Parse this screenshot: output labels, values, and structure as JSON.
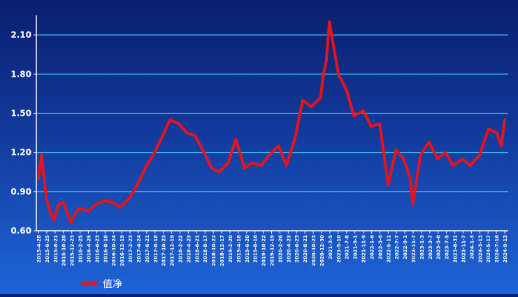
{
  "chart_data": {
    "type": "line",
    "title": "",
    "xlabel": "",
    "ylabel": "",
    "ylim": [
      0.6,
      2.25
    ],
    "yticks": [
      0.6,
      0.9,
      1.2,
      1.5,
      1.8,
      2.1
    ],
    "ytick_labels": [
      "0.60",
      "0.90",
      "1.20",
      "1.50",
      "1.80",
      "2.10"
    ],
    "grid": true,
    "legend_position": "bottom-left",
    "colors": {
      "line": "#e8141b",
      "grid": "#3ec8f2",
      "axis": "#ffffff"
    },
    "x_tick_labels": [
      "2015-4-28",
      "2015-6-25",
      "2015-8-21",
      "2015-10-28",
      "2015-12-23",
      "2016-2-25",
      "2016-4-25",
      "2016-6-23",
      "2016-8-18",
      "2016-10-24",
      "2016-12-19",
      "2017-2-23",
      "2017-4-24",
      "2017-6-21",
      "2017-8-18",
      "2017-10-23",
      "2017-12-19",
      "2018-2-22",
      "2018-4-23",
      "2018-6-21",
      "2018-8-17",
      "2018-10-22",
      "2018-12-17",
      "2019-2-20",
      "2019-4-18",
      "2019-6-20",
      "2019-8-16",
      "2019-10-22",
      "2019-12-19",
      "2020-2-26",
      "2020-4-23",
      "2020-6-23",
      "2020-8-21",
      "2020-10-23",
      "2020-12-30",
      "2021-3-5",
      "2021-5-10",
      "2021-7-8",
      "2021-9-1",
      "2021-11-9",
      "2022-1-6",
      "2022-3-9",
      "2022-5-11",
      "2022-7-7",
      "2022-9-1",
      "2022-11-7",
      "2023-1-3",
      "2023-3-7",
      "2023-5-8",
      "2023-7-5",
      "2023-8-31",
      "2023-11-7",
      "2024-1-3",
      "2024-3-13",
      "2024-5-17",
      "2024-7-16",
      "2024-9-13"
    ],
    "series": [
      {
        "name": "值净",
        "x": [
          "2015-4-28",
          "2015-5-20",
          "2015-6-25",
          "2015-7-20",
          "2015-8-21",
          "2015-9-20",
          "2015-10-28",
          "2015-12-1",
          "2015-12-23",
          "2016-1-25",
          "2016-2-25",
          "2016-4-25",
          "2016-6-23",
          "2016-8-18",
          "2016-10-24",
          "2016-12-19",
          "2017-2-23",
          "2017-4-24",
          "2017-6-21",
          "2017-8-18",
          "2017-10-23",
          "2017-12-19",
          "2018-2-22",
          "2018-4-23",
          "2018-6-21",
          "2018-8-17",
          "2018-10-22",
          "2018-12-17",
          "2019-2-20",
          "2019-4-18",
          "2019-6-20",
          "2019-8-16",
          "2019-10-22",
          "2019-12-19",
          "2020-2-26",
          "2020-4-23",
          "2020-6-23",
          "2020-8-21",
          "2020-10-23",
          "2020-12-30",
          "2021-1-20",
          "2021-2-10",
          "2021-3-5",
          "2021-5-10",
          "2021-7-8",
          "2021-9-1",
          "2021-11-9",
          "2022-1-6",
          "2022-3-9",
          "2022-5-11",
          "2022-7-7",
          "2022-9-1",
          "2022-10-20",
          "2022-11-7",
          "2023-1-3",
          "2023-3-7",
          "2023-5-8",
          "2023-7-5",
          "2023-8-31",
          "2023-11-7",
          "2024-1-3",
          "2024-3-13",
          "2024-5-17",
          "2024-7-16",
          "2024-8-20",
          "2024-9-13"
        ],
        "values": [
          1.0,
          1.18,
          0.85,
          0.75,
          0.68,
          0.8,
          0.82,
          0.72,
          0.66,
          0.74,
          0.77,
          0.75,
          0.8,
          0.83,
          0.82,
          0.78,
          0.85,
          0.95,
          1.08,
          1.18,
          1.32,
          1.45,
          1.42,
          1.35,
          1.33,
          1.22,
          1.08,
          1.05,
          1.12,
          1.3,
          1.08,
          1.12,
          1.1,
          1.18,
          1.25,
          1.1,
          1.3,
          1.6,
          1.55,
          1.62,
          1.8,
          1.9,
          2.2,
          1.8,
          1.68,
          1.48,
          1.52,
          1.4,
          1.42,
          0.95,
          1.22,
          1.15,
          1.0,
          0.8,
          1.18,
          1.28,
          1.15,
          1.2,
          1.1,
          1.15,
          1.1,
          1.18,
          1.38,
          1.35,
          1.25,
          1.45
        ]
      }
    ]
  }
}
